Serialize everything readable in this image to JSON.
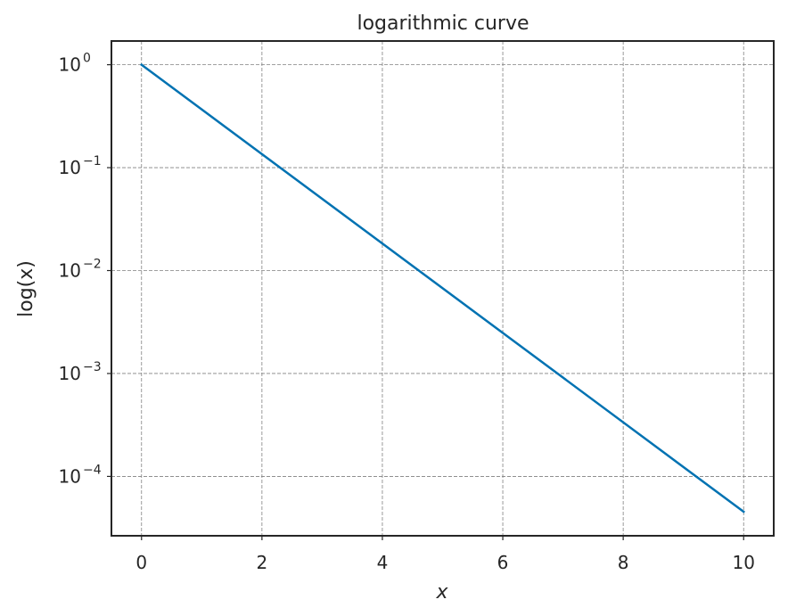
{
  "chart_data": {
    "type": "line",
    "title": "logarithmic curve",
    "xlabel": "x",
    "ylabel": "log(x)",
    "xlim": [
      -0.5,
      10.5
    ],
    "ylim": [
      2.65e-05,
      1.7
    ],
    "yscale": "log",
    "grid": true,
    "x_ticks": [
      0,
      2,
      4,
      6,
      8,
      10
    ],
    "y_tick_exponents": [
      0,
      -1,
      -2,
      -3,
      -4
    ],
    "series": [
      {
        "color": "#0072b2",
        "x": [
          0,
          10
        ],
        "y": [
          1.0,
          4.54e-05
        ]
      }
    ]
  }
}
